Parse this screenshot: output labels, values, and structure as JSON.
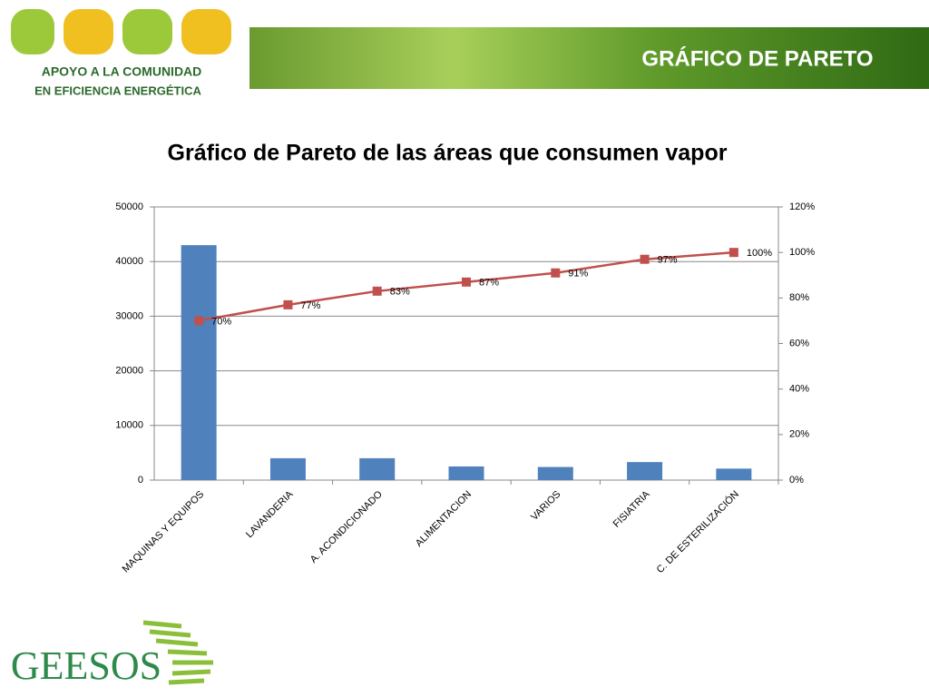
{
  "header": {
    "title": "GRÁFICO DE PARETO",
    "logo_line1": "APOYO A LA COMUNIDAD",
    "logo_line2": "EN EFICIENCIA ENERGÉTICA"
  },
  "footer": {
    "logo": "GEESOS"
  },
  "chart_data": {
    "type": "pareto",
    "title": "Gráfico de Pareto de las áreas que consumen vapor",
    "categories": [
      "MAQUINAS Y EQUIPOS",
      "LAVANDERIA",
      "A. ACONDICIONADO",
      "ALIMENTACION",
      "VARIOS",
      "FISIATRIA",
      "C. DE ESTERILIZACIÓN"
    ],
    "series": [
      {
        "type": "bar",
        "color": "#4f81bd",
        "values": [
          43000,
          4000,
          4000,
          2500,
          2400,
          3300,
          2100
        ]
      },
      {
        "type": "line",
        "axis": "y2",
        "color": "#c0504d",
        "values": [
          70,
          77,
          83,
          87,
          91,
          97,
          100
        ],
        "value_labels": [
          "70%",
          "77%",
          "83%",
          "87%",
          "91%",
          "97%",
          "100%"
        ]
      }
    ],
    "ylim": [
      0,
      50000
    ],
    "yticks": [
      0,
      10000,
      20000,
      30000,
      40000,
      50000
    ],
    "y2lim": [
      0,
      120
    ],
    "y2ticks": [
      {
        "value": 0,
        "label": "0%"
      },
      {
        "value": 20,
        "label": "20%"
      },
      {
        "value": 40,
        "label": "40%"
      },
      {
        "value": 60,
        "label": "60%"
      },
      {
        "value": 80,
        "label": "80%"
      },
      {
        "value": 100,
        "label": "100%"
      },
      {
        "value": 120,
        "label": "120%"
      }
    ],
    "grid": true
  }
}
